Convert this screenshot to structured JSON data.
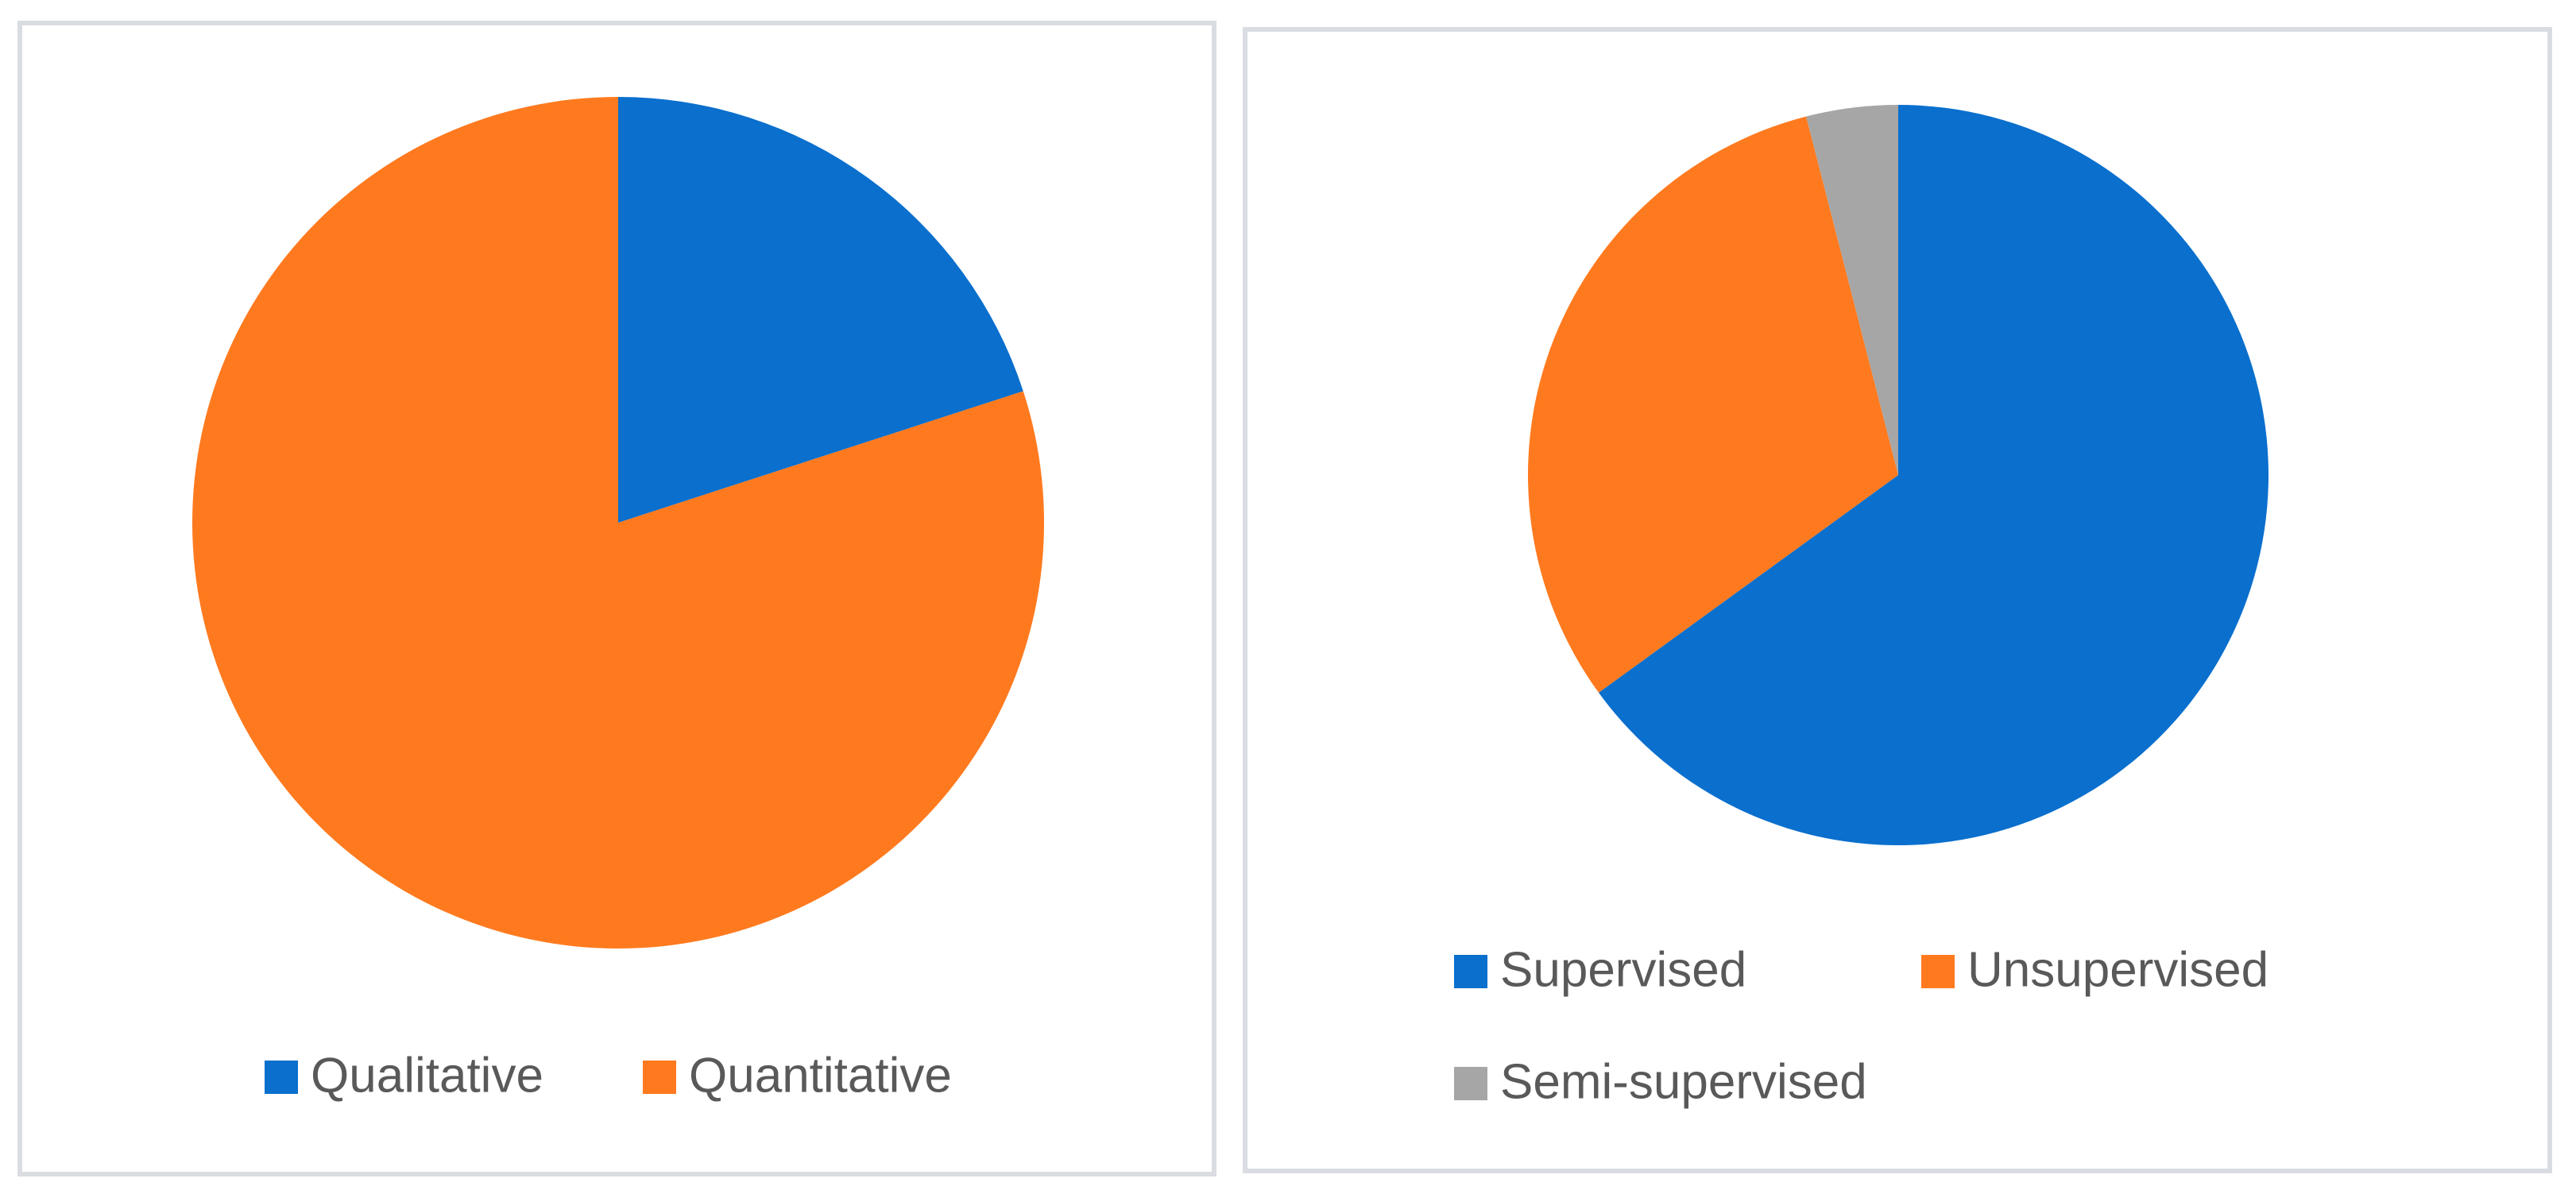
{
  "chart_data": [
    {
      "type": "pie",
      "categories": [
        "Qualitative",
        "Quantitative"
      ],
      "values": [
        20,
        80
      ],
      "colors": [
        "#0a6fcd",
        "#ff7a1f"
      ],
      "legend": "bottom"
    },
    {
      "type": "pie",
      "categories": [
        "Supervised",
        "Unsupervised",
        "Semi-supervised"
      ],
      "values": [
        65,
        31,
        4
      ],
      "colors": [
        "#0a6fcd",
        "#ff7a1f",
        "#a6a6a6"
      ],
      "legend": "bottom"
    }
  ]
}
